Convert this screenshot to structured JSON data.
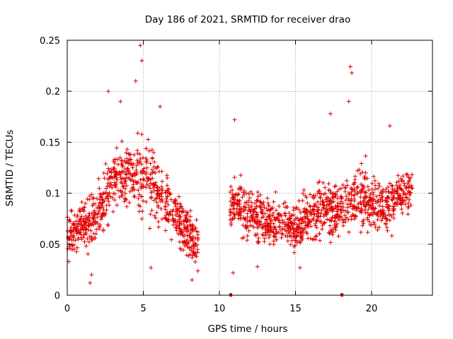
{
  "chart_data": {
    "type": "scatter",
    "title": "Day 186 of 2021, SRMTID for receiver drao",
    "xlabel": "GPS time / hours",
    "ylabel": "SRMTID / TECUs",
    "xlim": [
      0,
      24
    ],
    "ylim": [
      0,
      0.25
    ],
    "xticks": [
      0,
      5,
      10,
      15,
      20
    ],
    "xtick_labels": [
      "0",
      "5",
      "10",
      "15",
      "20"
    ],
    "yticks": [
      0,
      0.05,
      0.1,
      0.15,
      0.2,
      0.25
    ],
    "ytick_labels": [
      "0",
      "0.05",
      "0.1",
      "0.15",
      "0.2",
      "0.25"
    ],
    "grid": true,
    "marker": "+",
    "color": "#e00000",
    "series": [
      {
        "name": "SRMTID",
        "description": "dense scatter of ~2000 points; envelope sampled below",
        "segments": [
          {
            "x_range": [
              0,
              8.6
            ],
            "envelope_x": [
              0,
              1,
              2,
              3,
              4,
              5,
              6,
              7,
              8,
              8.6
            ],
            "envelope_mean": [
              0.06,
              0.07,
              0.08,
              0.11,
              0.12,
              0.12,
              0.1,
              0.08,
              0.06,
              0.05
            ],
            "envelope_spread": [
              0.025,
              0.03,
              0.035,
              0.04,
              0.045,
              0.05,
              0.04,
              0.03,
              0.03,
              0.025
            ]
          },
          {
            "x_range": [
              10.7,
              22.7
            ],
            "envelope_x": [
              10.7,
              12,
              13,
              14,
              15,
              16,
              17,
              18,
              19,
              20,
              21,
              22,
              22.7
            ],
            "envelope_mean": [
              0.09,
              0.08,
              0.07,
              0.075,
              0.065,
              0.08,
              0.085,
              0.085,
              0.1,
              0.09,
              0.085,
              0.1,
              0.1
            ],
            "envelope_spread": [
              0.03,
              0.03,
              0.03,
              0.03,
              0.025,
              0.03,
              0.035,
              0.035,
              0.04,
              0.035,
              0.035,
              0.035,
              0.03
            ]
          }
        ],
        "extreme_points": [
          {
            "x": 4.8,
            "y": 0.245
          },
          {
            "x": 4.9,
            "y": 0.23
          },
          {
            "x": 4.5,
            "y": 0.21
          },
          {
            "x": 2.7,
            "y": 0.2
          },
          {
            "x": 3.5,
            "y": 0.19
          },
          {
            "x": 6.1,
            "y": 0.185
          },
          {
            "x": 18.6,
            "y": 0.224
          },
          {
            "x": 18.7,
            "y": 0.218
          },
          {
            "x": 18.5,
            "y": 0.19
          },
          {
            "x": 11.0,
            "y": 0.172
          },
          {
            "x": 17.3,
            "y": 0.178
          },
          {
            "x": 21.2,
            "y": 0.166
          },
          {
            "x": 1.5,
            "y": 0.012
          },
          {
            "x": 1.6,
            "y": 0.02
          },
          {
            "x": 8.2,
            "y": 0.015
          },
          {
            "x": 10.9,
            "y": 0.022
          },
          {
            "x": 15.3,
            "y": 0.027
          },
          {
            "x": 5.5,
            "y": 0.027
          },
          {
            "x": 12.5,
            "y": 0.028
          },
          {
            "x": 0.1,
            "y": 0.033
          }
        ],
        "zero_markers_x": [
          10.75,
          18.05
        ]
      }
    ]
  }
}
